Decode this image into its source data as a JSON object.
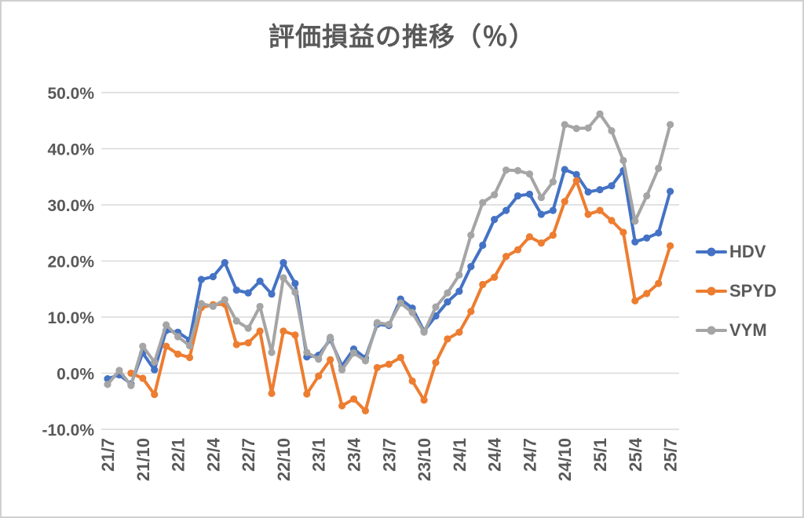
{
  "chart_data": {
    "type": "line",
    "title": "評価損益の推移（％）",
    "xlabel": "",
    "ylabel": "",
    "y_axis": {
      "min": -10,
      "max": 50,
      "step": 10,
      "tick_labels": [
        "50.0%",
        "40.0%",
        "30.0%",
        "20.0%",
        "10.0%",
        "0.0%",
        "-10.0%"
      ],
      "grid": true
    },
    "x_tick_interval": 3,
    "x_tick_labels": [
      "21/7",
      "21/10",
      "22/1",
      "22/4",
      "22/7",
      "22/10",
      "23/1",
      "23/4",
      "23/7",
      "23/10",
      "24/1",
      "24/4",
      "24/7",
      "24/10",
      "25/1",
      "25/4",
      "25/7"
    ],
    "categories": [
      "21/7",
      "21/8",
      "21/9",
      "21/10",
      "21/11",
      "21/12",
      "22/1",
      "22/2",
      "22/3",
      "22/4",
      "22/5",
      "22/6",
      "22/7",
      "22/8",
      "22/9",
      "22/10",
      "22/11",
      "22/12",
      "23/1",
      "23/2",
      "23/3",
      "23/4",
      "23/5",
      "23/6",
      "23/7",
      "23/8",
      "23/9",
      "23/10",
      "23/11",
      "23/12",
      "24/1",
      "24/2",
      "24/3",
      "24/4",
      "24/5",
      "24/6",
      "24/7",
      "24/8",
      "24/9",
      "24/10",
      "24/11",
      "24/12",
      "25/1",
      "25/2",
      "25/3",
      "25/4",
      "25/5",
      "25/6",
      "25/7"
    ],
    "series": [
      {
        "name": "HDV",
        "color": "#4472C4",
        "values": [
          -1.0,
          -0.3,
          -1.9,
          3.6,
          0.6,
          7.6,
          7.3,
          5.9,
          16.7,
          17.2,
          19.7,
          14.8,
          14.3,
          16.4,
          14.1,
          19.7,
          16.0,
          2.9,
          3.2,
          6.0,
          1.3,
          4.3,
          2.7,
          8.7,
          8.5,
          13.2,
          11.6,
          7.5,
          10.2,
          12.7,
          14.6,
          19.0,
          22.8,
          27.4,
          29.0,
          31.6,
          31.9,
          28.3,
          29.0,
          36.3,
          35.4,
          32.3,
          32.7,
          33.4,
          36.1,
          23.4,
          24.1,
          25.0,
          32.4
        ]
      },
      {
        "name": "SPYD",
        "color": "#ED7D31",
        "values": [
          null,
          null,
          0.0,
          -0.9,
          -3.8,
          4.8,
          3.4,
          2.8,
          11.7,
          12.2,
          12.3,
          5.1,
          5.4,
          7.5,
          -3.6,
          7.5,
          6.8,
          -3.7,
          -0.5,
          2.4,
          -5.8,
          -4.6,
          -6.7,
          1.0,
          1.6,
          2.8,
          -1.4,
          -4.8,
          1.9,
          6.1,
          7.3,
          11.0,
          15.8,
          17.1,
          20.8,
          22.0,
          24.3,
          23.2,
          24.6,
          30.6,
          34.3,
          28.3,
          29.0,
          27.2,
          25.1,
          12.9,
          14.2,
          16.0,
          22.7
        ]
      },
      {
        "name": "VYM",
        "color": "#A5A5A5",
        "values": [
          -2.0,
          0.5,
          -2.2,
          4.8,
          2.0,
          8.6,
          6.5,
          4.9,
          12.4,
          11.9,
          13.1,
          9.3,
          8.0,
          11.9,
          3.7,
          17.0,
          14.4,
          3.7,
          2.5,
          6.4,
          0.6,
          3.6,
          2.2,
          9.0,
          8.7,
          12.5,
          10.8,
          7.3,
          11.8,
          14.3,
          17.5,
          24.6,
          30.4,
          31.8,
          36.2,
          36.1,
          35.5,
          31.3,
          34.1,
          44.3,
          43.6,
          43.7,
          46.2,
          43.2,
          37.9,
          27.1,
          31.6,
          36.5,
          44.3
        ]
      }
    ],
    "legend_position": "right",
    "text_color": "#595959",
    "gridline_color": "#D9D9D9",
    "background_color": "#FFFFFF"
  }
}
